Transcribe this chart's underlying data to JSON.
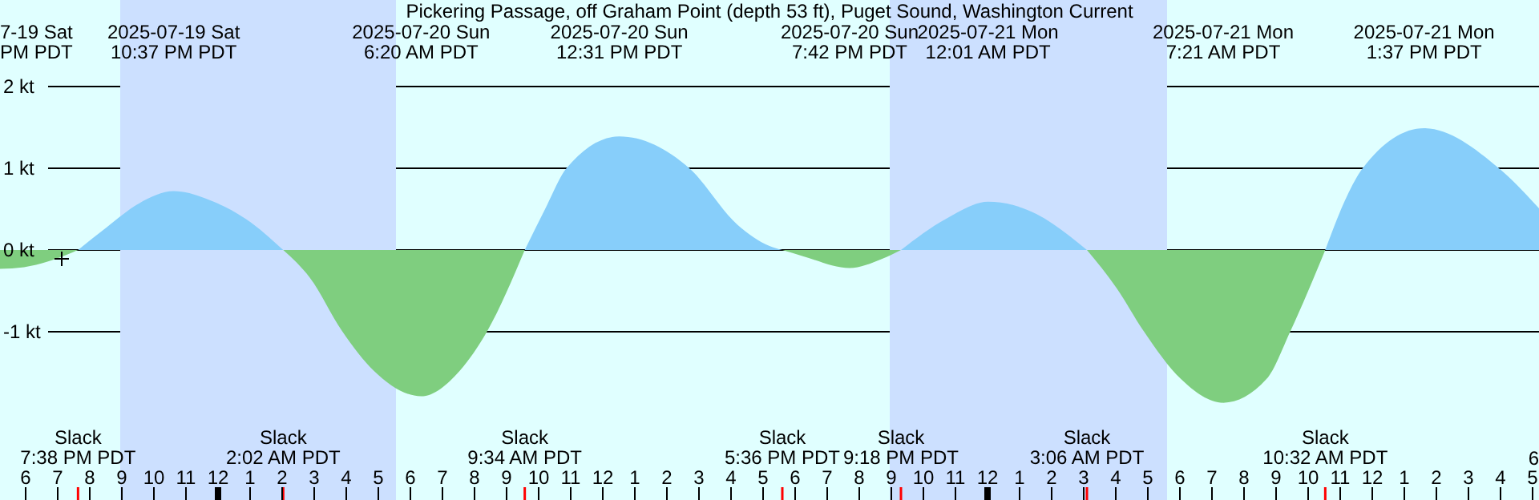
{
  "chart_data": {
    "type": "area",
    "title": "Pickering Passage, off Graham Point (depth 53 ft), Puget Sound, Washington Current",
    "x": [
      "2025-07-19T17:12",
      "2025-07-19T17:57",
      "2025-07-19T18:42",
      "2025-07-19T19:38",
      "2025-07-19T20:32",
      "2025-07-19T21:32",
      "2025-07-19T22:37",
      "2025-07-19T23:52",
      "2025-07-20T00:52",
      "2025-07-20T02:02",
      "2025-07-20T02:52",
      "2025-07-20T03:52",
      "2025-07-20T04:52",
      "2025-07-20T06:20",
      "2025-07-20T07:32",
      "2025-07-20T08:24",
      "2025-07-20T09:34",
      "2025-07-20T10:12",
      "2025-07-20T10:52",
      "2025-07-20T12:31",
      "2025-07-20T14:42",
      "2025-07-20T16:12",
      "2025-07-20T17:12",
      "2025-07-20T17:36",
      "2025-07-20T18:12",
      "2025-07-20T19:42",
      "2025-07-20T20:42",
      "2025-07-20T21:18",
      "2025-07-20T22:42",
      "2025-07-21T00:01",
      "2025-07-21T01:32",
      "2025-07-21T02:32",
      "2025-07-21T03:06",
      "2025-07-21T04:02",
      "2025-07-21T04:52",
      "2025-07-21T06:02",
      "2025-07-21T07:21",
      "2025-07-21T08:42",
      "2025-07-21T09:27",
      "2025-07-21T10:32",
      "2025-07-21T11:12",
      "2025-07-21T11:42",
      "2025-07-21T13:37",
      "2025-07-21T15:57",
      "2025-07-21T17:12"
    ],
    "series": [
      {
        "color": "#87cefa",
        "values": [
          null,
          null,
          null,
          0,
          0.28,
          0.57,
          0.72,
          0.59,
          0.38,
          0,
          null,
          null,
          null,
          null,
          null,
          null,
          0,
          0.5,
          1.0,
          1.39,
          1.0,
          0.31,
          0.05,
          0,
          null,
          null,
          null,
          0,
          0.38,
          0.59,
          0.44,
          0.18,
          0,
          null,
          null,
          null,
          null,
          null,
          null,
          0,
          0.65,
          1.0,
          1.49,
          1.0,
          0.51
        ]
      },
      {
        "color": "#7fce7f",
        "values": [
          -0.23,
          -0.21,
          -0.14,
          0,
          null,
          null,
          null,
          null,
          null,
          0,
          -0.34,
          -0.99,
          -1.48,
          -1.79,
          -1.48,
          -0.99,
          0,
          null,
          null,
          null,
          null,
          null,
          null,
          0,
          -0.07,
          -0.22,
          -0.11,
          0,
          null,
          null,
          null,
          null,
          0,
          -0.47,
          -0.99,
          -1.58,
          -1.87,
          -1.58,
          -0.99,
          0,
          null,
          null,
          null,
          null,
          null
        ]
      }
    ],
    "xlim": [
      "2025-07-19T17:12",
      "2025-07-21T17:12"
    ],
    "xticks": [
      {
        "value": "2025-07-19T18:00",
        "label": "6"
      },
      {
        "value": "2025-07-19T19:00",
        "label": "7"
      },
      {
        "value": "2025-07-19T20:00",
        "label": "8"
      },
      {
        "value": "2025-07-19T21:00",
        "label": "9"
      },
      {
        "value": "2025-07-19T22:00",
        "label": "10"
      },
      {
        "value": "2025-07-19T23:00",
        "label": "11"
      },
      {
        "value": "2025-07-20T00:00",
        "label": "12"
      },
      {
        "value": "2025-07-20T01:00",
        "label": "1"
      },
      {
        "value": "2025-07-20T02:00",
        "label": "2"
      },
      {
        "value": "2025-07-20T03:00",
        "label": "3"
      },
      {
        "value": "2025-07-20T04:00",
        "label": "4"
      },
      {
        "value": "2025-07-20T05:00",
        "label": "5"
      },
      {
        "value": "2025-07-20T06:00",
        "label": "6"
      },
      {
        "value": "2025-07-20T07:00",
        "label": "7"
      },
      {
        "value": "2025-07-20T08:00",
        "label": "8"
      },
      {
        "value": "2025-07-20T09:00",
        "label": "9"
      },
      {
        "value": "2025-07-20T10:00",
        "label": "10"
      },
      {
        "value": "2025-07-20T11:00",
        "label": "11"
      },
      {
        "value": "2025-07-20T12:00",
        "label": "12"
      },
      {
        "value": "2025-07-20T13:00",
        "label": "1"
      },
      {
        "value": "2025-07-20T14:00",
        "label": "2"
      },
      {
        "value": "2025-07-20T15:00",
        "label": "3"
      },
      {
        "value": "2025-07-20T16:00",
        "label": "4"
      },
      {
        "value": "2025-07-20T17:00",
        "label": "5"
      },
      {
        "value": "2025-07-20T18:00",
        "label": "6"
      },
      {
        "value": "2025-07-20T19:00",
        "label": "7"
      },
      {
        "value": "2025-07-20T20:00",
        "label": "8"
      },
      {
        "value": "2025-07-20T21:00",
        "label": "9"
      },
      {
        "value": "2025-07-20T22:00",
        "label": "10"
      },
      {
        "value": "2025-07-20T23:00",
        "label": "11"
      },
      {
        "value": "2025-07-21T00:00",
        "label": "12"
      },
      {
        "value": "2025-07-21T01:00",
        "label": "1"
      },
      {
        "value": "2025-07-21T02:00",
        "label": "2"
      },
      {
        "value": "2025-07-21T03:00",
        "label": "3"
      },
      {
        "value": "2025-07-21T04:00",
        "label": "4"
      },
      {
        "value": "2025-07-21T05:00",
        "label": "5"
      },
      {
        "value": "2025-07-21T06:00",
        "label": "6"
      },
      {
        "value": "2025-07-21T07:00",
        "label": "7"
      },
      {
        "value": "2025-07-21T08:00",
        "label": "8"
      },
      {
        "value": "2025-07-21T09:00",
        "label": "9"
      },
      {
        "value": "2025-07-21T10:00",
        "label": "10"
      },
      {
        "value": "2025-07-21T11:00",
        "label": "11"
      },
      {
        "value": "2025-07-21T12:00",
        "label": "12"
      },
      {
        "value": "2025-07-21T13:00",
        "label": "1"
      },
      {
        "value": "2025-07-21T14:00",
        "label": "2"
      },
      {
        "value": "2025-07-21T15:00",
        "label": "3"
      },
      {
        "value": "2025-07-21T16:00",
        "label": "4"
      },
      {
        "value": "2025-07-21T17:00",
        "label": "5"
      }
    ],
    "ylim": [
      -3.06,
      3.06
    ],
    "yticks": [
      {
        "value": -1,
        "label": "-1 kt"
      },
      {
        "value": 0,
        "label": "0 kt"
      },
      {
        "value": 1,
        "label": "1 kt"
      },
      {
        "value": 2,
        "label": "2 kt"
      }
    ],
    "grid": "y",
    "bands": [
      {
        "axis": "x",
        "from": "2025-07-19T20:57",
        "to": "2025-07-20T05:33",
        "color": "#cce0ff"
      },
      {
        "axis": "x",
        "from": "2025-07-20T20:57",
        "to": "2025-07-21T05:36",
        "color": "#cce0ff"
      }
    ],
    "annotations": [
      "7-19 Sat\nPM PDT",
      "6",
      "2025-07-19 Sat\n10:37 PM PDT",
      "2025-07-20 Sun\n6:20 AM PDT",
      "2025-07-20 Sun\n12:31 PM PDT",
      "2025-07-20 Sun\n7:42 PM PDT",
      "2025-07-21 Mon\n12:01 AM PDT",
      "2025-07-21 Mon\n7:21 AM PDT",
      "2025-07-21 Mon\n1:37 PM PDT",
      "Slack\n7:38 PM PDT",
      "Slack\n2:02 AM PDT",
      "Slack\n9:34 AM PDT",
      "Slack\n5:36 PM PDT",
      "Slack\n9:18 PM PDT",
      "Slack\n3:06 AM PDT",
      "Slack\n10:32 AM PDT"
    ]
  }
}
